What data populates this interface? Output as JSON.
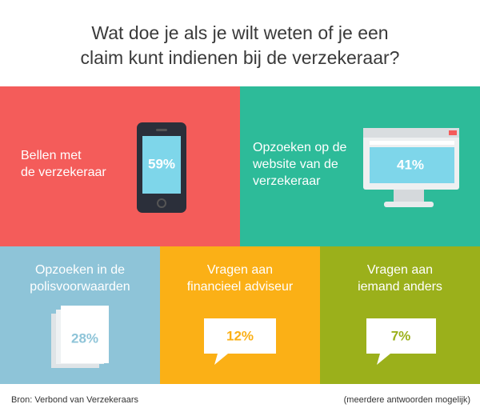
{
  "title": {
    "lines": [
      "Wat doe je als je wilt weten of je een",
      "claim kunt indienen bij de verzekeraar?"
    ]
  },
  "tiles": [
    {
      "label": [
        "Bellen met",
        "de verzekeraar"
      ],
      "value": "59%"
    },
    {
      "label": [
        "Opzoeken op de",
        "website van de",
        "verzekeraar"
      ],
      "value": "41%"
    },
    {
      "label": [
        "Opzoeken in de",
        "polisvoorwaarden"
      ],
      "value": "28%"
    },
    {
      "label": [
        "Vragen aan",
        "financieel adviseur"
      ],
      "value": "12%"
    },
    {
      "label": [
        "Vragen aan",
        "iemand anders"
      ],
      "value": "7%"
    }
  ],
  "footer": {
    "source": "Bron: Verbond van Verzekeraars",
    "note": "(meerdere antwoorden mogelijk)"
  }
}
